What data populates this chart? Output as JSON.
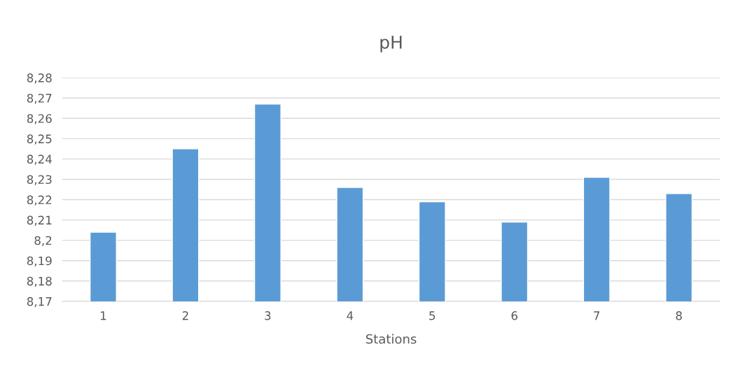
{
  "chart_data": {
    "type": "bar",
    "title": "pH",
    "xlabel": "Stations",
    "categories": [
      "1",
      "2",
      "3",
      "4",
      "5",
      "6",
      "7",
      "8"
    ],
    "values": [
      8.204,
      8.245,
      8.267,
      8.226,
      8.219,
      8.209,
      8.231,
      8.223
    ],
    "color": "#5b9bd5",
    "ylim": [
      8.17,
      8.28
    ],
    "yticks": [
      {
        "value": 8.17,
        "label": "8,17"
      },
      {
        "value": 8.18,
        "label": "8,18"
      },
      {
        "value": 8.19,
        "label": "8,19"
      },
      {
        "value": 8.2,
        "label": "8,2"
      },
      {
        "value": 8.21,
        "label": "8,21"
      },
      {
        "value": 8.22,
        "label": "8,22"
      },
      {
        "value": 8.23,
        "label": "8,23"
      },
      {
        "value": 8.24,
        "label": "8,24"
      },
      {
        "value": 8.25,
        "label": "8,25"
      },
      {
        "value": 8.26,
        "label": "8,26"
      },
      {
        "value": 8.27,
        "label": "8,27"
      },
      {
        "value": 8.28,
        "label": "8,28"
      }
    ],
    "grid": "y"
  }
}
